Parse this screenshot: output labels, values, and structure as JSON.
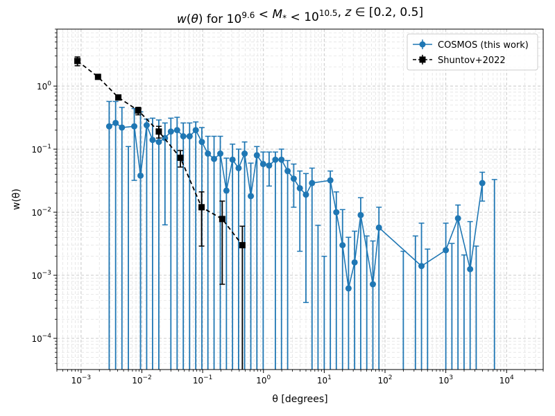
{
  "chart_data": {
    "type": "scatter",
    "title": "w(θ) for 10^9.6 < M* < 10^10.5, z ∈ [0.2, 0.5]",
    "xlabel": "θ [degrees]",
    "ylabel": "w(θ)",
    "xscale": "log",
    "yscale": "log",
    "xlim": [
      0.0004,
      40000
    ],
    "ylim": [
      3.2e-05,
      8
    ],
    "xticks": [
      "10^-3",
      "10^-2",
      "10^-1",
      "10^0",
      "10^1",
      "10^2",
      "10^3",
      "10^4"
    ],
    "yticks": [
      "10^-4",
      "10^-3",
      "10^-2",
      "10^-1",
      "10^0"
    ],
    "grid": true,
    "legend_position": "top-right",
    "series": [
      {
        "name": "COSMOS (this work)",
        "color": "#1f77b4",
        "marker": "circle",
        "linestyle": "solid",
        "points": [
          {
            "x": 0.0029,
            "y": 0.23,
            "lo": 1e-05,
            "hi": 0.57
          },
          {
            "x": 0.0037,
            "y": 0.26,
            "lo": 1e-05,
            "hi": 0.57
          },
          {
            "x": 0.0047,
            "y": 0.22,
            "lo": 1e-05,
            "hi": 0.46
          },
          {
            "x": 0.006,
            "y": null,
            "lo": 1e-05,
            "hi": 0.11
          },
          {
            "x": 0.0075,
            "y": 0.23,
            "lo": 0.032,
            "hi": 0.44
          },
          {
            "x": 0.0095,
            "y": 0.038,
            "lo": 1e-05,
            "hi": 0.39
          },
          {
            "x": 0.012,
            "y": 0.24,
            "lo": 1e-05,
            "hi": 0.3
          },
          {
            "x": 0.015,
            "y": 0.14,
            "lo": 1e-05,
            "hi": 0.31
          },
          {
            "x": 0.019,
            "y": 0.13,
            "lo": 1e-05,
            "hi": 0.29
          },
          {
            "x": 0.024,
            "y": 0.15,
            "lo": 0.0063,
            "hi": 0.26
          },
          {
            "x": 0.03,
            "y": 0.19,
            "lo": 1e-05,
            "hi": 0.31
          },
          {
            "x": 0.038,
            "y": 0.2,
            "lo": 1e-05,
            "hi": 0.32
          },
          {
            "x": 0.048,
            "y": 0.16,
            "lo": 1e-05,
            "hi": 0.26
          },
          {
            "x": 0.061,
            "y": 0.16,
            "lo": 1e-05,
            "hi": 0.26
          },
          {
            "x": 0.077,
            "y": 0.2,
            "lo": 1e-05,
            "hi": 0.27
          },
          {
            "x": 0.097,
            "y": 0.13,
            "lo": 1e-05,
            "hi": 0.22
          },
          {
            "x": 0.122,
            "y": 0.085,
            "lo": 1e-05,
            "hi": 0.16
          },
          {
            "x": 0.154,
            "y": 0.07,
            "lo": 1e-05,
            "hi": 0.16
          },
          {
            "x": 0.195,
            "y": 0.085,
            "lo": 1e-05,
            "hi": 0.16
          },
          {
            "x": 0.246,
            "y": 0.022,
            "lo": 1e-05,
            "hi": 0.072
          },
          {
            "x": 0.31,
            "y": 0.068,
            "lo": 1e-05,
            "hi": 0.12
          },
          {
            "x": 0.39,
            "y": 0.05,
            "lo": 1e-05,
            "hi": 0.1
          },
          {
            "x": 0.49,
            "y": 0.085,
            "lo": 1e-05,
            "hi": 0.13
          },
          {
            "x": 0.62,
            "y": 0.018,
            "lo": 1e-05,
            "hi": 0.06
          },
          {
            "x": 0.78,
            "y": 0.08,
            "lo": 1e-05,
            "hi": 0.11
          },
          {
            "x": 0.99,
            "y": 0.058,
            "lo": 1e-05,
            "hi": 0.09
          },
          {
            "x": 1.24,
            "y": 0.055,
            "lo": 0.026,
            "hi": 0.09
          },
          {
            "x": 1.57,
            "y": 0.068,
            "lo": 1e-05,
            "hi": 0.09
          },
          {
            "x": 1.98,
            "y": 0.068,
            "lo": 1e-05,
            "hi": 0.1
          },
          {
            "x": 2.5,
            "y": 0.045,
            "lo": 1e-05,
            "hi": 0.066
          },
          {
            "x": 3.15,
            "y": 0.034,
            "lo": 0.012,
            "hi": 0.058
          },
          {
            "x": 3.97,
            "y": 0.024,
            "lo": 0.0024,
            "hi": 0.045
          },
          {
            "x": 5.0,
            "y": 0.019,
            "lo": 0.00037,
            "hi": 0.041
          },
          {
            "x": 6.3,
            "y": 0.029,
            "lo": 1e-05,
            "hi": 0.05
          },
          {
            "x": 7.9,
            "y": null,
            "lo": 1e-05,
            "hi": 0.0062
          },
          {
            "x": 10.0,
            "y": null,
            "lo": 1e-05,
            "hi": 0.002
          },
          {
            "x": 12.6,
            "y": 0.032,
            "lo": 1e-05,
            "hi": 0.045
          },
          {
            "x": 15.8,
            "y": 0.01,
            "lo": 1e-05,
            "hi": 0.021
          },
          {
            "x": 20.0,
            "y": 0.003,
            "lo": 1e-05,
            "hi": 0.011
          },
          {
            "x": 25.1,
            "y": 0.00062,
            "lo": 1e-05,
            "hi": 0.004
          },
          {
            "x": 31.6,
            "y": 0.0016,
            "lo": 1e-05,
            "hi": 0.005
          },
          {
            "x": 39.8,
            "y": 0.009,
            "lo": 1e-05,
            "hi": 0.017
          },
          {
            "x": 50.1,
            "y": null,
            "lo": 1e-05,
            "hi": 0.0042
          },
          {
            "x": 63.1,
            "y": 0.00072,
            "lo": 1e-05,
            "hi": 0.0035
          },
          {
            "x": 79.4,
            "y": 0.0057,
            "lo": 1e-05,
            "hi": 0.012
          },
          {
            "x": 200,
            "y": null,
            "lo": 1e-05,
            "hi": 0.0024
          },
          {
            "x": 316,
            "y": null,
            "lo": 1e-05,
            "hi": 0.0042
          },
          {
            "x": 398,
            "y": 0.0014,
            "lo": 1e-05,
            "hi": 0.0067
          },
          {
            "x": 501,
            "y": null,
            "lo": 1e-05,
            "hi": 0.0026
          },
          {
            "x": 1000,
            "y": 0.0025,
            "lo": 1e-05,
            "hi": 0.0067
          },
          {
            "x": 1259,
            "y": null,
            "lo": 1e-05,
            "hi": 0.0032
          },
          {
            "x": 1585,
            "y": 0.008,
            "lo": 1e-05,
            "hi": 0.013
          },
          {
            "x": 1995,
            "y": null,
            "lo": 1e-05,
            "hi": 0.0021
          },
          {
            "x": 2512,
            "y": 0.00125,
            "lo": 1e-05,
            "hi": 0.0071
          },
          {
            "x": 3162,
            "y": null,
            "lo": 1e-05,
            "hi": 0.0029
          },
          {
            "x": 3981,
            "y": 0.029,
            "lo": 0.015,
            "hi": 0.043
          },
          {
            "x": 6310,
            "y": null,
            "lo": 1e-05,
            "hi": 0.033
          }
        ]
      },
      {
        "name": "Shuntov+2022",
        "color": "#000000",
        "marker": "square",
        "linestyle": "dashed",
        "points": [
          {
            "x": 0.00087,
            "y": 2.5,
            "lo": 2.1,
            "hi": 2.9
          },
          {
            "x": 0.0019,
            "y": 1.4,
            "lo": 1.3,
            "hi": 1.5
          },
          {
            "x": 0.0041,
            "y": 0.66,
            "lo": 0.62,
            "hi": 0.71
          },
          {
            "x": 0.0087,
            "y": 0.41,
            "lo": 0.35,
            "hi": 0.46
          },
          {
            "x": 0.019,
            "y": 0.19,
            "lo": 0.15,
            "hi": 0.23
          },
          {
            "x": 0.043,
            "y": 0.073,
            "lo": 0.052,
            "hi": 0.095
          },
          {
            "x": 0.096,
            "y": 0.012,
            "lo": 0.0029,
            "hi": 0.021
          },
          {
            "x": 0.21,
            "y": 0.0078,
            "lo": 0.00072,
            "hi": 0.015
          },
          {
            "x": 0.45,
            "y": 0.003,
            "lo": 1e-05,
            "hi": 0.006
          }
        ]
      }
    ]
  }
}
